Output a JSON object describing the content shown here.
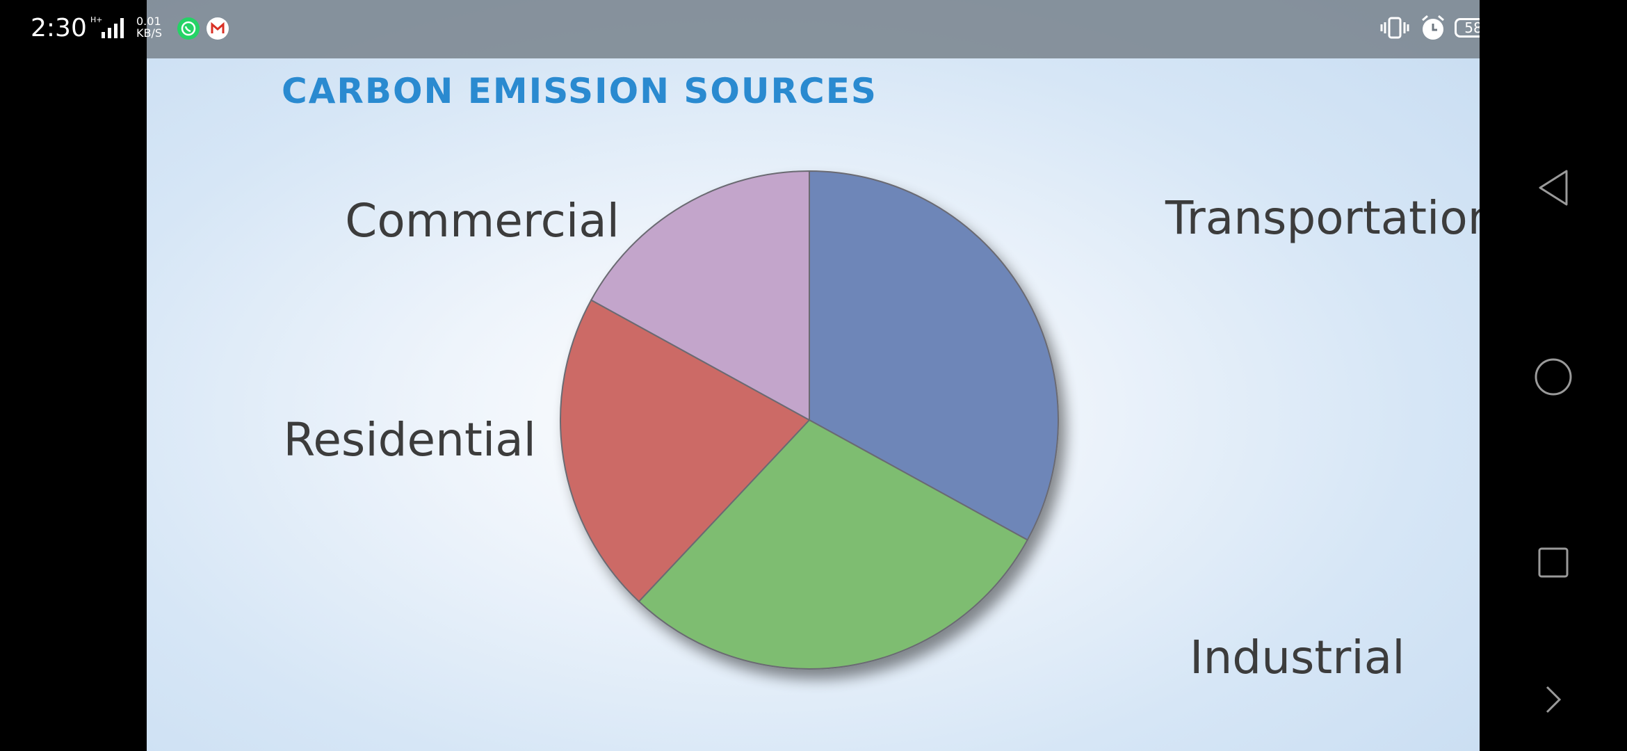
{
  "status_bar": {
    "time": "2:30",
    "network_type": "H+",
    "net_speed_value": "0.01",
    "net_speed_unit": "KB/S",
    "battery": "58",
    "icons": [
      "signal-icon",
      "whatsapp-icon",
      "gmail-icon",
      "vibrate-icon",
      "alarm-icon",
      "battery-icon"
    ]
  },
  "slide": {
    "title": "CARBON EMISSION SOURCES"
  },
  "chart_data": {
    "type": "pie",
    "title": "CARBON EMISSION SOURCES",
    "slices": [
      {
        "label": "Transportation",
        "value": 33,
        "color": "#6e86b8"
      },
      {
        "label": "Industrial",
        "value": 29,
        "color": "#7ebd71"
      },
      {
        "label": "Residential",
        "value": 21,
        "color": "#cc6b66"
      },
      {
        "label": "Commercial",
        "value": 17,
        "color": "#c3a5cb"
      }
    ],
    "start": "12 o'clock",
    "direction": "clockwise"
  },
  "nav_bar": {
    "icons": [
      "back-icon",
      "home-icon",
      "recents-icon",
      "chevron-right-icon"
    ]
  }
}
